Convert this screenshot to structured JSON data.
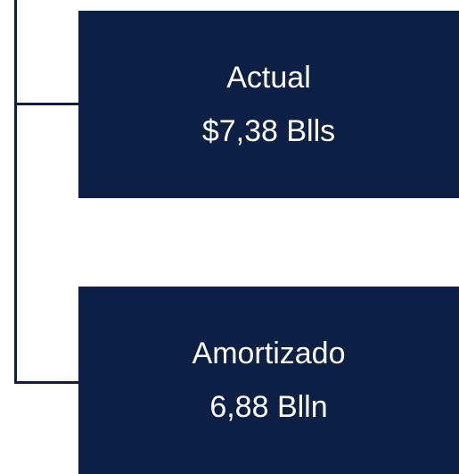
{
  "nodes": [
    {
      "label": "Actual",
      "value": "$7,38 Blls"
    },
    {
      "label": "Amortizado",
      "value": "6,88 Blln"
    }
  ]
}
